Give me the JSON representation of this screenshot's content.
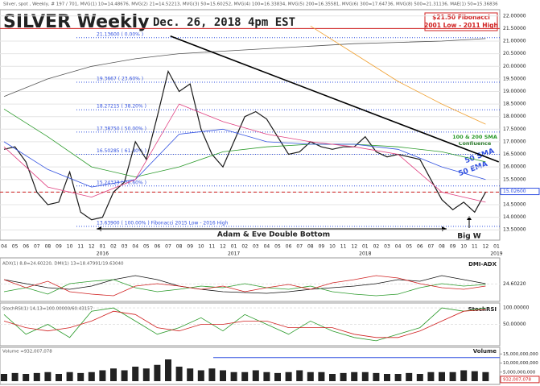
{
  "header": {
    "title": "SILVER Weekly",
    "date": "Dec. 26, 2018 4pm EST",
    "legend": "Silver, spot , Weekly, # 197 / 701, MVG(1) 10=14.48676, MVG(2) 21=14.52213, MVG(3) 50=15.60252, MVG(4) 100=16.33834, MVG(5) 200=16.35581, MVG(6) 300=17.64736, MVG(8) 500=21.31136, MAE(1) 50=15.36836"
  },
  "chart_data": [
    {
      "type": "line",
      "name": "price",
      "categories": [
        "04",
        "05",
        "06",
        "07",
        "08",
        "09",
        "10",
        "11",
        "12",
        "01",
        "02",
        "03",
        "04",
        "05",
        "06",
        "07",
        "08",
        "09",
        "10",
        "11",
        "12",
        "01",
        "02",
        "03",
        "04",
        "05",
        "06",
        "07",
        "08",
        "09",
        "10",
        "11",
        "12",
        "01",
        "02",
        "03",
        "04",
        "05",
        "06",
        "07",
        "08",
        "09",
        "10",
        "11",
        "12",
        "01"
      ],
      "years": [
        {
          "label": "2016",
          "at": 9
        },
        {
          "label": "2017",
          "at": 21
        },
        {
          "label": "2018",
          "at": 33
        },
        {
          "label": "2019",
          "at": 45
        }
      ],
      "series": [
        {
          "name": "Silver",
          "color": "#1a1a1a",
          "values": [
            16.7,
            16.8,
            16.2,
            15.0,
            14.5,
            14.6,
            15.8,
            14.2,
            13.9,
            14.0,
            15.0,
            15.4,
            17.0,
            16.3,
            18.0,
            19.8,
            19.0,
            19.3,
            17.5,
            16.5,
            16.0,
            17.0,
            18.0,
            18.2,
            17.9,
            17.2,
            16.5,
            16.6,
            17.0,
            16.8,
            16.7,
            16.8,
            16.8,
            17.2,
            16.6,
            16.4,
            16.5,
            16.4,
            16.3,
            15.5,
            14.7,
            14.3,
            14.6,
            14.2,
            15.0,
            null
          ]
        },
        {
          "name": "500 MA",
          "color": "#555555",
          "x": [
            0,
            4,
            8,
            12,
            16,
            20,
            24,
            28,
            32,
            36,
            40,
            44
          ],
          "values": [
            18.8,
            19.5,
            20.0,
            20.3,
            20.5,
            20.6,
            20.7,
            20.8,
            20.9,
            20.95,
            21.0,
            21.1
          ]
        },
        {
          "name": "300 MA",
          "color": "#f0a030",
          "x": [
            0,
            4,
            8,
            12,
            16,
            20,
            24,
            28,
            32,
            36,
            40,
            44
          ],
          "values": [
            null,
            null,
            null,
            null,
            null,
            null,
            null,
            21.6,
            20.5,
            19.4,
            18.5,
            17.7
          ]
        },
        {
          "name": "100 SMA",
          "color": "#2a9a2a",
          "x": [
            0,
            4,
            8,
            12,
            16,
            20,
            24,
            28,
            32,
            36,
            40,
            44
          ],
          "values": [
            18.3,
            17.2,
            16.0,
            15.6,
            16.0,
            16.6,
            16.8,
            16.9,
            16.9,
            16.8,
            16.6,
            16.2
          ]
        },
        {
          "name": "50 SMA",
          "color": "#3050e0",
          "x": [
            0,
            4,
            8,
            12,
            16,
            20,
            24,
            28,
            32,
            36,
            40,
            44
          ],
          "values": [
            17.0,
            15.9,
            15.2,
            15.5,
            17.3,
            17.5,
            17.0,
            16.9,
            16.9,
            16.7,
            16.0,
            15.5
          ]
        },
        {
          "name": "21 MA",
          "color": "#e04080",
          "x": [
            0,
            4,
            8,
            12,
            16,
            20,
            24,
            28,
            32,
            36,
            40,
            44
          ],
          "values": [
            16.8,
            15.2,
            14.8,
            15.5,
            18.5,
            17.8,
            17.3,
            17.0,
            16.8,
            16.5,
            15.0,
            14.6
          ]
        }
      ],
      "trendline": {
        "x": [
          15.2,
          45.2
        ],
        "values": [
          21.2,
          16.2
        ]
      },
      "levels": [
        {
          "value": 21.5,
          "color": "#d02020"
        },
        {
          "value": 15.0,
          "color": "#d02020",
          "dashed": true
        }
      ],
      "fibonacci": [
        {
          "value": 21.136,
          "label": "21.13600 ( 0.00% )"
        },
        {
          "value": 19.3667,
          "label": "19.3667 ( 23.60% )"
        },
        {
          "value": 18.27215,
          "label": "18.27215 ( 38.20% )"
        },
        {
          "value": 17.3875,
          "label": "17.38750 ( 50.00% )"
        },
        {
          "value": 16.50285,
          "label": "16.50285 ( 61.80% )"
        },
        {
          "value": 15.24323,
          "label": "15.24323 ( 78.60% )"
        },
        {
          "value": 13.639,
          "label": "13.63900 ( 100.00% ) Fibonacci 2015 Low - 2016 High"
        }
      ],
      "last_price": {
        "value": 15.026,
        "label": "15.02600"
      },
      "ylim": [
        13.25,
        22.25
      ],
      "yticks": [
        {
          "value": 13.5,
          "label": "13.50000"
        },
        {
          "value": 14,
          "label": "14.00000"
        },
        {
          "value": 14.5,
          "label": "14.50000"
        },
        {
          "value": 15,
          "label": "15.00000"
        },
        {
          "value": 15.5,
          "label": "15.50000"
        },
        {
          "value": 16,
          "label": "16.00000"
        },
        {
          "value": 16.5,
          "label": "16.50000"
        },
        {
          "value": 17,
          "label": "17.00000"
        },
        {
          "value": 17.5,
          "label": "17.50000"
        },
        {
          "value": 18,
          "label": "18.00000"
        },
        {
          "value": 18.5,
          "label": "18.50000"
        },
        {
          "value": 19,
          "label": "19.00000"
        },
        {
          "value": 19.5,
          "label": "19.50000"
        },
        {
          "value": 20,
          "label": "20.00000"
        },
        {
          "value": 20.5,
          "label": "20.50000"
        },
        {
          "value": 21,
          "label": "21.00000"
        },
        {
          "value": 21.5,
          "label": "21.50000"
        },
        {
          "value": 22,
          "label": "22.00000"
        }
      ],
      "annotations": {
        "fib_box": "$21.50 Fibonacci",
        "fib_box2": "2001 Low - 2011 High",
        "sma_conf": "100 & 200 SMA",
        "sma_conf2": "Confluence",
        "sma50": "50 SMA",
        "ema50": "50 EMA",
        "adam_eve": "Adam & Eve Double Bottom",
        "big_w": "Big W"
      }
    },
    {
      "type": "line",
      "name": "adx",
      "title": "ADX(1) 8,8=24.60220, DMI(1) 13=18.47991/19.63040",
      "annotation": "DMI-ADX",
      "x": [
        0,
        2,
        4,
        6,
        8,
        10,
        12,
        14,
        16,
        18,
        20,
        22,
        24,
        26,
        28,
        30,
        32,
        34,
        36,
        38,
        40,
        42,
        44
      ],
      "series": [
        {
          "name": "ADX",
          "color": "#111111",
          "values": [
            30,
            25,
            20,
            18,
            22,
            30,
            35,
            30,
            22,
            18,
            15,
            14,
            13,
            15,
            18,
            20,
            22,
            25,
            30,
            28,
            35,
            30,
            25
          ]
        },
        {
          "name": "DI+",
          "color": "#2a9a2a",
          "values": [
            15,
            20,
            12,
            25,
            28,
            30,
            20,
            15,
            18,
            22,
            20,
            25,
            20,
            18,
            22,
            15,
            12,
            10,
            12,
            20,
            25,
            22,
            24
          ]
        },
        {
          "name": "DI-",
          "color": "#d02020",
          "values": [
            30,
            20,
            28,
            15,
            12,
            10,
            22,
            25,
            22,
            18,
            22,
            15,
            20,
            24,
            18,
            26,
            30,
            35,
            32,
            25,
            20,
            18,
            22
          ]
        }
      ],
      "ylim": [
        5,
        55
      ],
      "yticks": [
        {
          "value": 24.6022,
          "label": "24.60220"
        }
      ]
    },
    {
      "type": "line",
      "name": "stochrsi",
      "title": "StochRSI(1) 14,13=100.00000/60.43157",
      "annotation": "StochRSI",
      "x": [
        0,
        2,
        4,
        6,
        8,
        10,
        12,
        14,
        16,
        18,
        20,
        22,
        24,
        26,
        28,
        30,
        32,
        34,
        36,
        38,
        40,
        42,
        44
      ],
      "series": [
        {
          "name": "StochRSI",
          "color": "#2a9a2a",
          "values": [
            80,
            20,
            50,
            10,
            90,
            100,
            60,
            20,
            40,
            70,
            30,
            80,
            50,
            20,
            60,
            30,
            10,
            0,
            20,
            40,
            100,
            90,
            100
          ]
        },
        {
          "name": "Signal",
          "color": "#d02020",
          "values": [
            60,
            40,
            30,
            40,
            60,
            90,
            80,
            40,
            30,
            50,
            50,
            60,
            60,
            40,
            40,
            40,
            20,
            10,
            10,
            30,
            60,
            90,
            95
          ]
        }
      ],
      "ylim": [
        -10,
        110
      ],
      "yticks": [
        {
          "value": 100,
          "label": "100.00000"
        },
        {
          "value": 50,
          "label": "50.00000"
        }
      ]
    },
    {
      "type": "bar",
      "name": "volume",
      "title": "Volume =932,007,078",
      "annotation": "Volume",
      "color": "#222222",
      "values": [
        4000000000,
        4500000000,
        4000000000,
        4500000000,
        5000000000,
        4000000000,
        5000000000,
        4500000000,
        5000000000,
        6000000000,
        7000000000,
        6000000000,
        8000000000,
        7000000000,
        9000000000,
        12000000000,
        8000000000,
        7000000000,
        6000000000,
        7000000000,
        6000000000,
        5000000000,
        5000000000,
        6000000000,
        5000000000,
        4500000000,
        5000000000,
        6000000000,
        5000000000,
        5000000000,
        4000000000,
        4500000000,
        5000000000,
        5000000000,
        4500000000,
        4000000000,
        4000000000,
        4500000000,
        4000000000,
        5000000000,
        5000000000,
        5000000000,
        6000000000,
        5500000000,
        5000000000,
        null
      ],
      "level": 13000000000,
      "last": {
        "value": 932007078,
        "label": "932,007,078"
      },
      "ylim": [
        0,
        16000000000
      ],
      "yticks": [
        {
          "value": 5000000000,
          "label": "5,000,000,000"
        },
        {
          "value": 10000000000,
          "label": "10,000,000,000"
        },
        {
          "value": 15000000000,
          "label": "15,000,000,000"
        }
      ]
    }
  ]
}
